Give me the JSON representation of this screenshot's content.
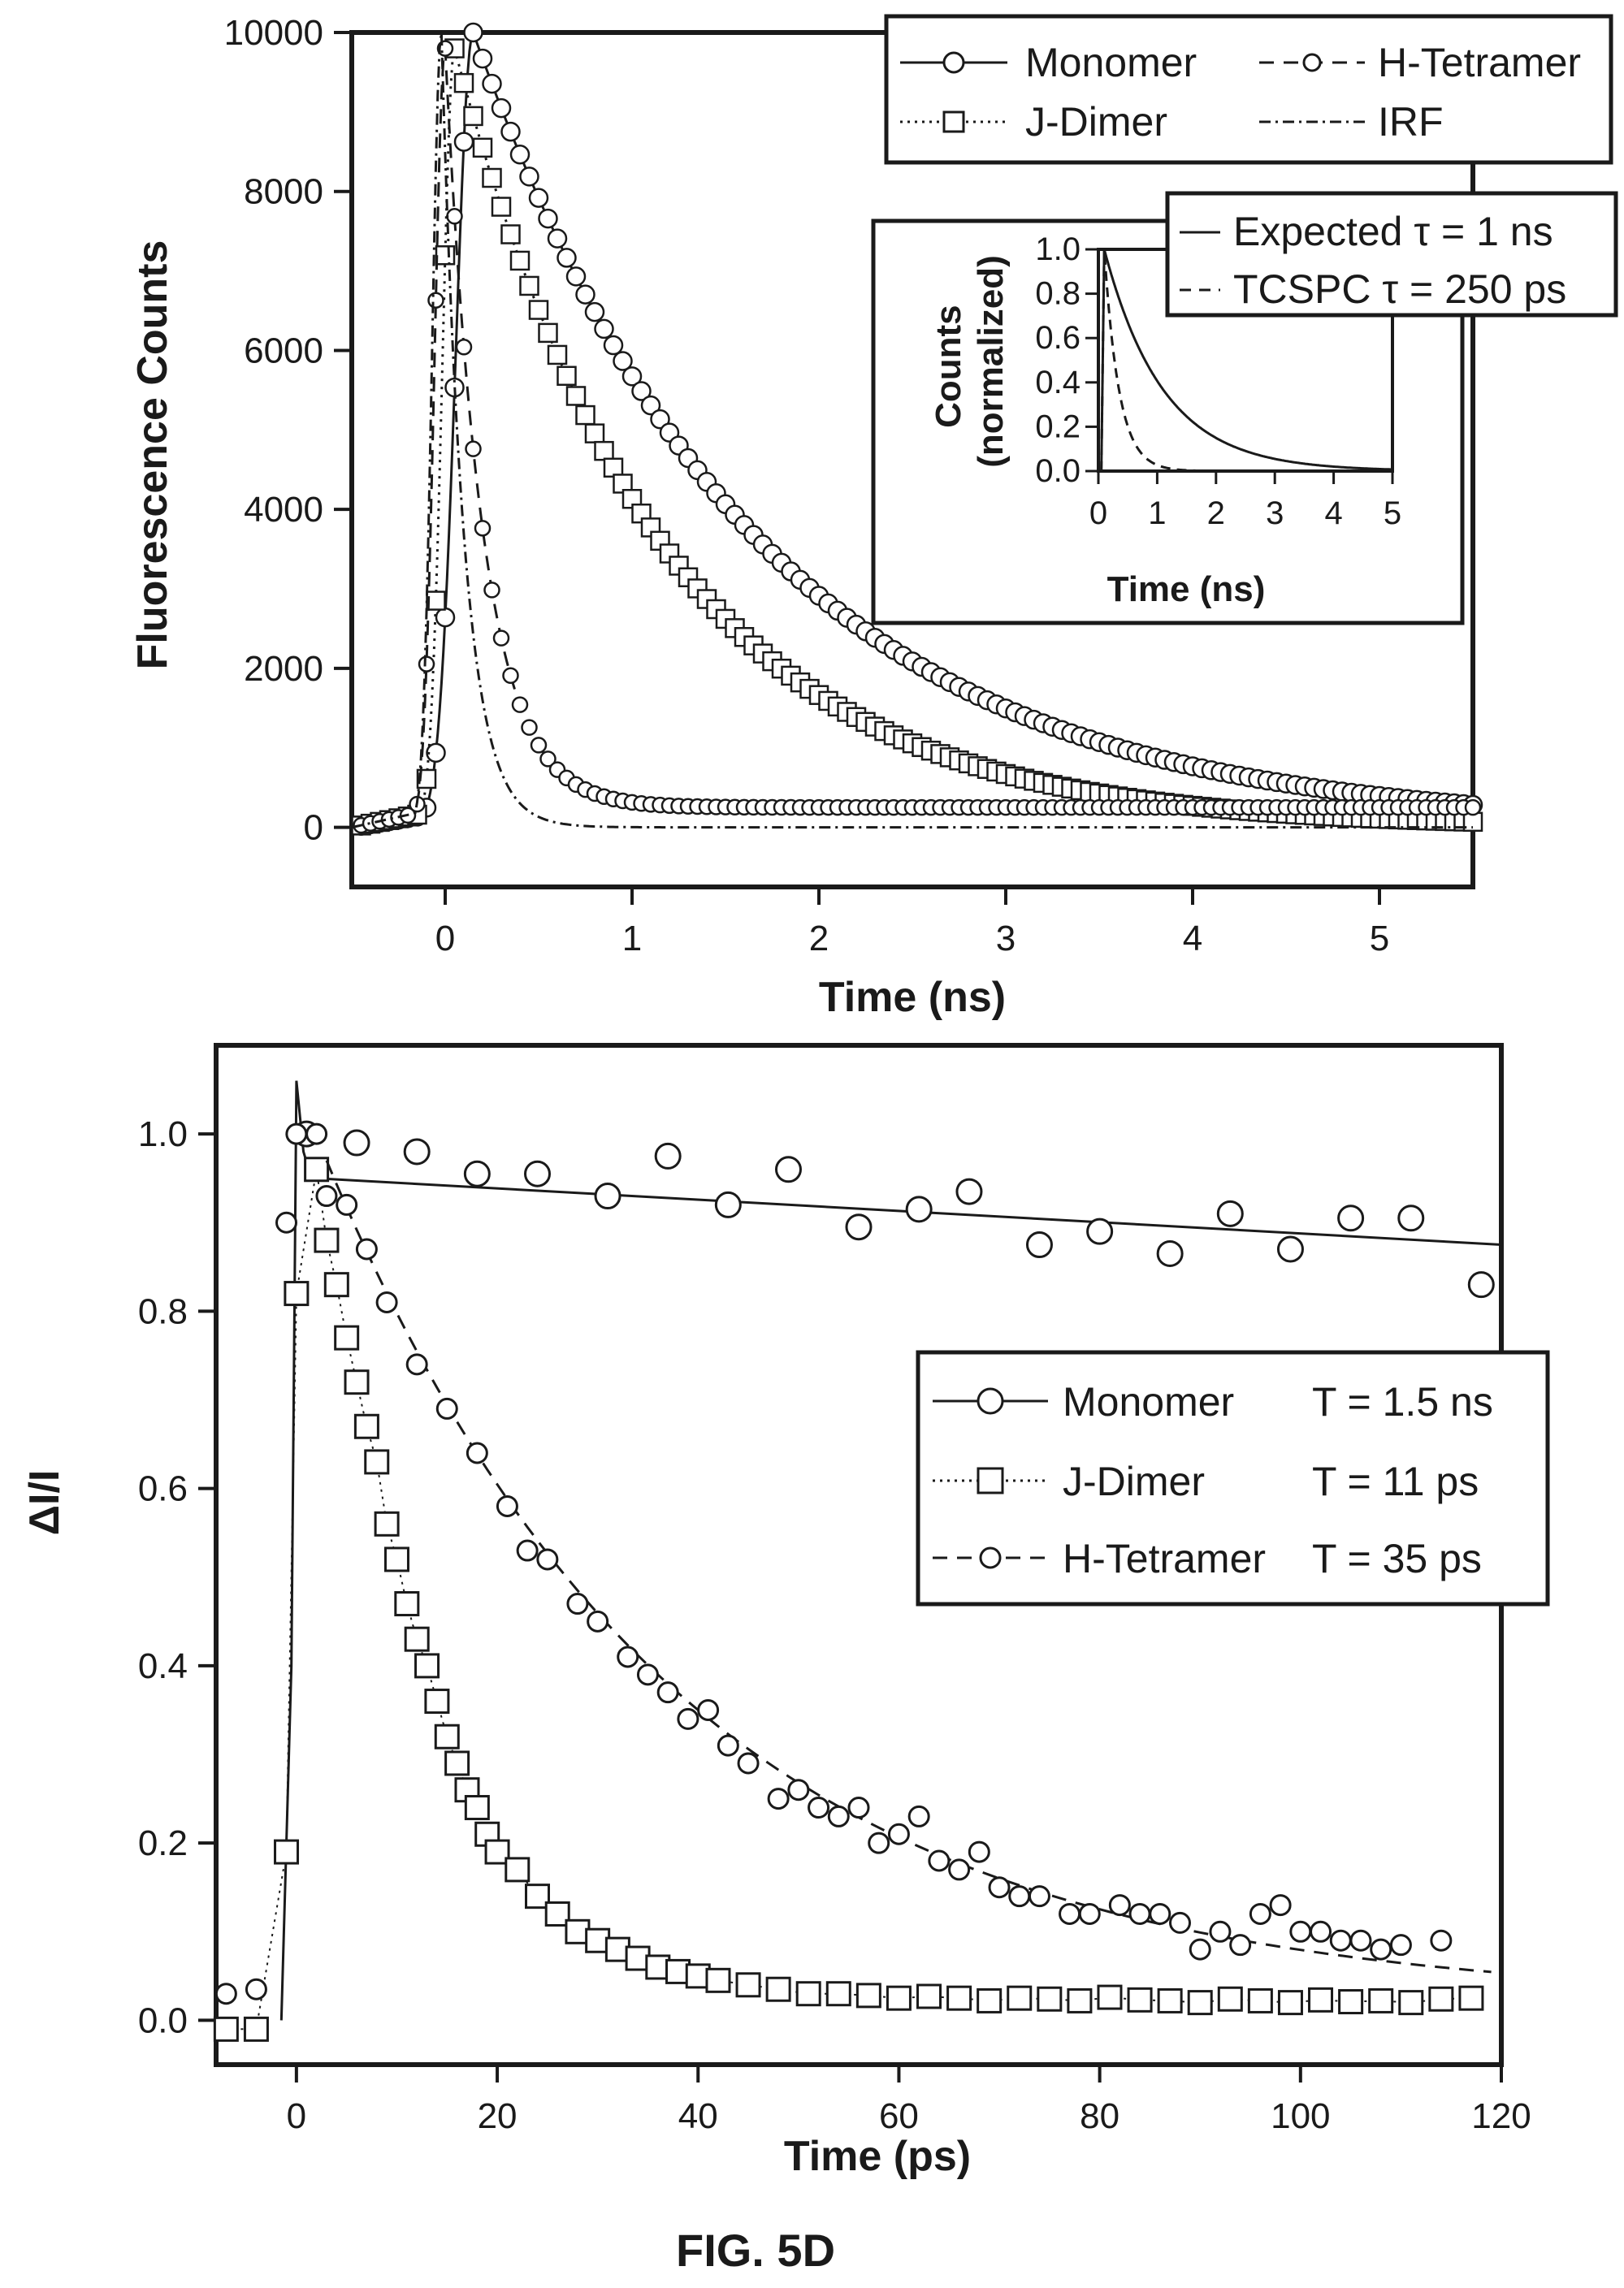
{
  "figure_label": "FIG. 5D",
  "chart_data": [
    {
      "id": "top",
      "type": "line",
      "xlabel": "Time (ns)",
      "ylabel": "Fluorescence Counts",
      "xlim": [
        -0.5,
        5.5
      ],
      "ylim": [
        -750,
        10000
      ],
      "xticks": [
        0,
        1,
        2,
        3,
        4,
        5
      ],
      "yticks": [
        0,
        2000,
        4000,
        6000,
        8000,
        10000
      ],
      "legend_position": "top-right",
      "legend": [
        "Monomer",
        "H-Tetramer",
        "J-Dimer",
        "IRF"
      ],
      "series": [
        {
          "name": "Monomer",
          "style": "solid",
          "marker": "circle",
          "model": {
            "t0": -0.5,
            "peak_t": 0.15,
            "amp": 10000,
            "tau": 1.5,
            "base": 0,
            "rise": 0.13
          }
        },
        {
          "name": "J-Dimer",
          "style": "dotted",
          "marker": "square",
          "model": {
            "t0": -0.5,
            "peak_t": 0.05,
            "amp": 9800,
            "tau": 1.1,
            "base": 0,
            "rise": 0.09
          }
        },
        {
          "name": "H-Tetramer",
          "style": "dashed",
          "marker": "circle-small",
          "model": {
            "t0": -0.5,
            "peak_t": 0.0,
            "amp": 9800,
            "tau": 0.2,
            "base": 250,
            "rise": 0.08
          }
        },
        {
          "name": "IRF",
          "style": "dashdot",
          "marker": "none",
          "model": {
            "t0": -0.5,
            "peak_t": -0.02,
            "amp": 10000,
            "tau": 0.12,
            "base": 0,
            "rise": 0.07
          }
        }
      ],
      "inset": {
        "xlabel": "Time (ns)",
        "ylabel": "Counts (normalized)",
        "xlim": [
          0,
          5
        ],
        "ylim": [
          0,
          1.0
        ],
        "xticks": [
          0,
          1,
          2,
          3,
          4,
          5
        ],
        "yticks": [
          0.0,
          0.2,
          0.4,
          0.6,
          0.8,
          1.0
        ],
        "legend": [
          "Expected τ = 1 ns",
          "TCSPC τ = 250 ps"
        ],
        "series": [
          {
            "name": "Expected τ = 1 ns",
            "style": "solid",
            "tau": 1.0
          },
          {
            "name": "TCSPC τ = 250 ps",
            "style": "dashed",
            "tau": 0.25
          }
        ]
      }
    },
    {
      "id": "bottom",
      "type": "scatter",
      "xlabel": "Time (ps)",
      "ylabel": "ΔI/I",
      "xlim": [
        -8,
        120
      ],
      "ylim": [
        -0.05,
        1.1
      ],
      "xticks": [
        0,
        20,
        40,
        60,
        80,
        100,
        120
      ],
      "yticks": [
        0.0,
        0.2,
        0.4,
        0.6,
        0.8,
        1.0
      ],
      "legend_position": "center-right",
      "legend": [
        {
          "name": "Monomer",
          "lifetime": "T = 1.5 ns"
        },
        {
          "name": "J-Dimer",
          "lifetime": "T = 11 ps"
        },
        {
          "name": "H-Tetramer",
          "lifetime": "T = 35 ps"
        }
      ],
      "series": [
        {
          "name": "Monomer",
          "marker": "circle",
          "x": [
            1,
            6,
            12,
            18,
            24,
            31,
            37,
            43,
            49,
            56,
            62,
            67,
            74,
            80,
            87,
            93,
            99,
            105,
            111,
            118
          ],
          "y": [
            1.0,
            0.99,
            0.98,
            0.955,
            0.955,
            0.93,
            0.975,
            0.92,
            0.96,
            0.895,
            0.915,
            0.935,
            0.875,
            0.89,
            0.865,
            0.91,
            0.87,
            0.905,
            0.905,
            0.83
          ],
          "fit": {
            "type": "line",
            "x": [
              2,
              120
            ],
            "y": [
              0.95,
              0.875
            ]
          }
        },
        {
          "name": "J-Dimer",
          "marker": "square",
          "x": [
            -7,
            -4,
            -1,
            0,
            2,
            3,
            4,
            5,
            6,
            7,
            8,
            9,
            10,
            11,
            12,
            13,
            14,
            15,
            16,
            17,
            18,
            19,
            20,
            22,
            24,
            26,
            28,
            30,
            32,
            34,
            36,
            38,
            40,
            42,
            45,
            48,
            51,
            54,
            57,
            60,
            63,
            66,
            69,
            72,
            75,
            78,
            81,
            84,
            87,
            90,
            93,
            96,
            99,
            102,
            105,
            108,
            111,
            114,
            117
          ],
          "y": [
            -0.01,
            -0.01,
            0.19,
            0.82,
            0.96,
            0.88,
            0.83,
            0.77,
            0.72,
            0.67,
            0.63,
            0.56,
            0.52,
            0.47,
            0.43,
            0.4,
            0.36,
            0.32,
            0.29,
            0.26,
            0.24,
            0.21,
            0.19,
            0.17,
            0.14,
            0.12,
            0.1,
            0.09,
            0.08,
            0.07,
            0.06,
            0.055,
            0.05,
            0.045,
            0.04,
            0.035,
            0.03,
            0.03,
            0.028,
            0.025,
            0.027,
            0.025,
            0.022,
            0.025,
            0.024,
            0.022,
            0.026,
            0.023,
            0.022,
            0.02,
            0.024,
            0.022,
            0.02,
            0.023,
            0.021,
            0.022,
            0.02,
            0.024,
            0.025
          ]
        },
        {
          "name": "H-Tetramer",
          "marker": "circle-small",
          "x": [
            -7,
            -4,
            -1,
            0,
            2,
            3,
            5,
            7,
            9,
            12,
            15,
            18,
            21,
            23,
            25,
            28,
            30,
            33,
            35,
            37,
            39,
            41,
            43,
            45,
            48,
            50,
            52,
            54,
            56,
            58,
            60,
            62,
            64,
            66,
            68,
            70,
            72,
            74,
            77,
            79,
            82,
            84,
            86,
            88,
            90,
            92,
            94,
            96,
            98,
            100,
            102,
            104,
            106,
            108,
            110,
            114
          ],
          "y": [
            0.03,
            0.035,
            0.9,
            1.0,
            1.0,
            0.93,
            0.92,
            0.87,
            0.81,
            0.74,
            0.69,
            0.64,
            0.58,
            0.53,
            0.52,
            0.47,
            0.45,
            0.41,
            0.39,
            0.37,
            0.34,
            0.35,
            0.31,
            0.29,
            0.25,
            0.26,
            0.24,
            0.23,
            0.24,
            0.2,
            0.21,
            0.23,
            0.18,
            0.17,
            0.19,
            0.15,
            0.14,
            0.14,
            0.12,
            0.12,
            0.13,
            0.12,
            0.12,
            0.11,
            0.08,
            0.1,
            0.085,
            0.12,
            0.13,
            0.1,
            0.1,
            0.09,
            0.09,
            0.08,
            0.085,
            0.09
          ],
          "fit": {
            "type": "exp",
            "amp": 0.95,
            "tau": 35,
            "base": 0.02
          }
        }
      ]
    }
  ]
}
